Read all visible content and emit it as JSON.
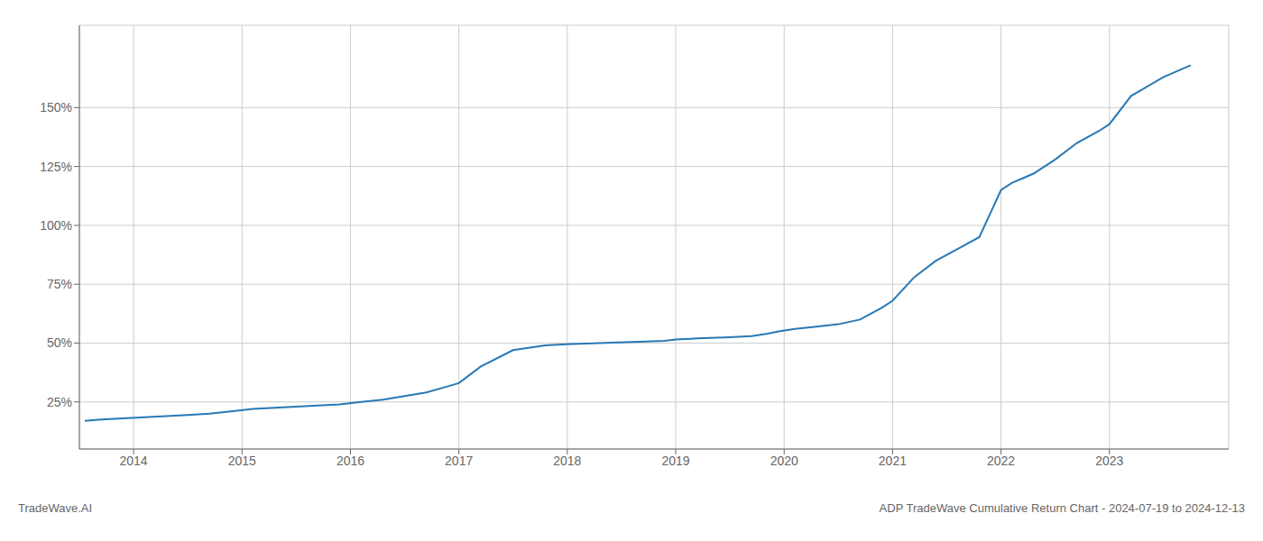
{
  "chart_data": {
    "type": "line",
    "title": "ADP TradeWave Cumulative Return Chart - 2024-07-19 to 2024-12-13",
    "annotations": [
      "TradeWave.AI"
    ],
    "color": "#2878b5",
    "grid": true,
    "x": [
      2013.55,
      2013.7,
      2013.9,
      2014.1,
      2014.3,
      2014.5,
      2014.7,
      2014.9,
      2015.1,
      2015.3,
      2015.5,
      2015.7,
      2015.9,
      2016.1,
      2016.3,
      2016.5,
      2016.7,
      2016.85,
      2017.0,
      2017.2,
      2017.5,
      2017.8,
      2018.0,
      2018.3,
      2018.6,
      2018.9,
      2019.0,
      2019.2,
      2019.5,
      2019.7,
      2019.85,
      2019.95,
      2020.1,
      2020.3,
      2020.5,
      2020.7,
      2020.9,
      2021.0,
      2021.2,
      2021.4,
      2021.6,
      2021.8,
      2021.9,
      2022.0,
      2022.1,
      2022.2,
      2022.3,
      2022.5,
      2022.7,
      2022.9,
      2023.0,
      2023.2,
      2023.5,
      2023.75
    ],
    "values": [
      17,
      17.5,
      18,
      18.5,
      19,
      19.5,
      20,
      21,
      22,
      22.5,
      23,
      23.5,
      24,
      25,
      26,
      27.5,
      29,
      31,
      33,
      40,
      47,
      49,
      49.5,
      50,
      50.5,
      51,
      51.5,
      52,
      52.5,
      53,
      54,
      55,
      56,
      57,
      58,
      60,
      65,
      68,
      78,
      85,
      90,
      95,
      105,
      115,
      118,
      120,
      122,
      128,
      135,
      140,
      143,
      155,
      163,
      168
    ],
    "xlim": [
      2013.5,
      2024.1
    ],
    "xticks": [
      2014,
      2015,
      2016,
      2017,
      2018,
      2019,
      2020,
      2021,
      2022,
      2023
    ],
    "ylim": [
      5,
      185
    ],
    "yticks": [
      {
        "value": 25,
        "label": "25%"
      },
      {
        "value": 50,
        "label": "50%"
      },
      {
        "value": 75,
        "label": "75%"
      },
      {
        "value": 100,
        "label": "100%"
      },
      {
        "value": 125,
        "label": "125%"
      },
      {
        "value": 150,
        "label": "150%"
      }
    ]
  }
}
